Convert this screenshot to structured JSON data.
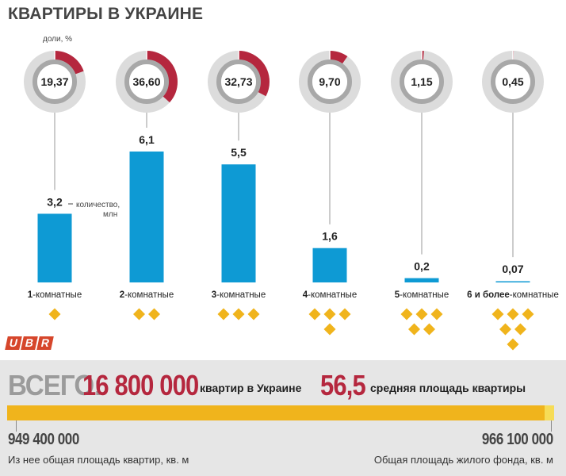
{
  "title": "КВАРТИРЫ В УКРАИНЕ",
  "shares_label": "доли, %",
  "count_label_1": "— количество,",
  "count_label_2": "млн",
  "colors": {
    "share": "#b5273e",
    "ring_outer": "#dcdcdc",
    "ring_inner": "#a8a8a8",
    "bar": "#0e9ad4",
    "diamond": "#f0b41c",
    "accent": "#b5273e",
    "total_bar": "#f0b41c"
  },
  "chart_data": {
    "type": "bar",
    "categories": [
      {
        "bold": "1",
        "rest": "-комнатные"
      },
      {
        "bold": "2",
        "rest": "-комнатные"
      },
      {
        "bold": "3",
        "rest": "-комнатные"
      },
      {
        "bold": "4",
        "rest": "-комнатные"
      },
      {
        "bold": "5",
        "rest": "-комнатные"
      },
      {
        "bold": "6 и более",
        "rest": "-комнатные"
      }
    ],
    "count_values": [
      3.2,
      6.1,
      5.5,
      1.6,
      0.2,
      0.07
    ],
    "count_labels": [
      "3,2",
      "6,1",
      "5,5",
      "1,6",
      "0,2",
      "0,07"
    ],
    "share_values": [
      19.37,
      36.6,
      32.73,
      9.7,
      1.15,
      0.45
    ],
    "share_labels": [
      "19,37",
      "36,60",
      "32,73",
      "9,70",
      "1,15",
      "0,45"
    ],
    "rooms_icons": [
      1,
      2,
      3,
      4,
      5,
      6
    ]
  },
  "totals": {
    "word": "ВСЕГО:",
    "apartments": "16 800 000",
    "apartments_caption": "квартир в Украине",
    "avg_area": "56,5",
    "avg_area_caption": "средняя площадь квартиры",
    "apartments_area": "949 400 000",
    "apartments_area_note": "Из нее общая площадь квартир, кв. м",
    "housing_area": "966 100 000",
    "housing_area_note": "Общая площадь жилого фонда, кв. м",
    "apartments_area_value": 949400000,
    "housing_area_value": 966100000
  },
  "logo": [
    "U",
    "B",
    "R"
  ]
}
